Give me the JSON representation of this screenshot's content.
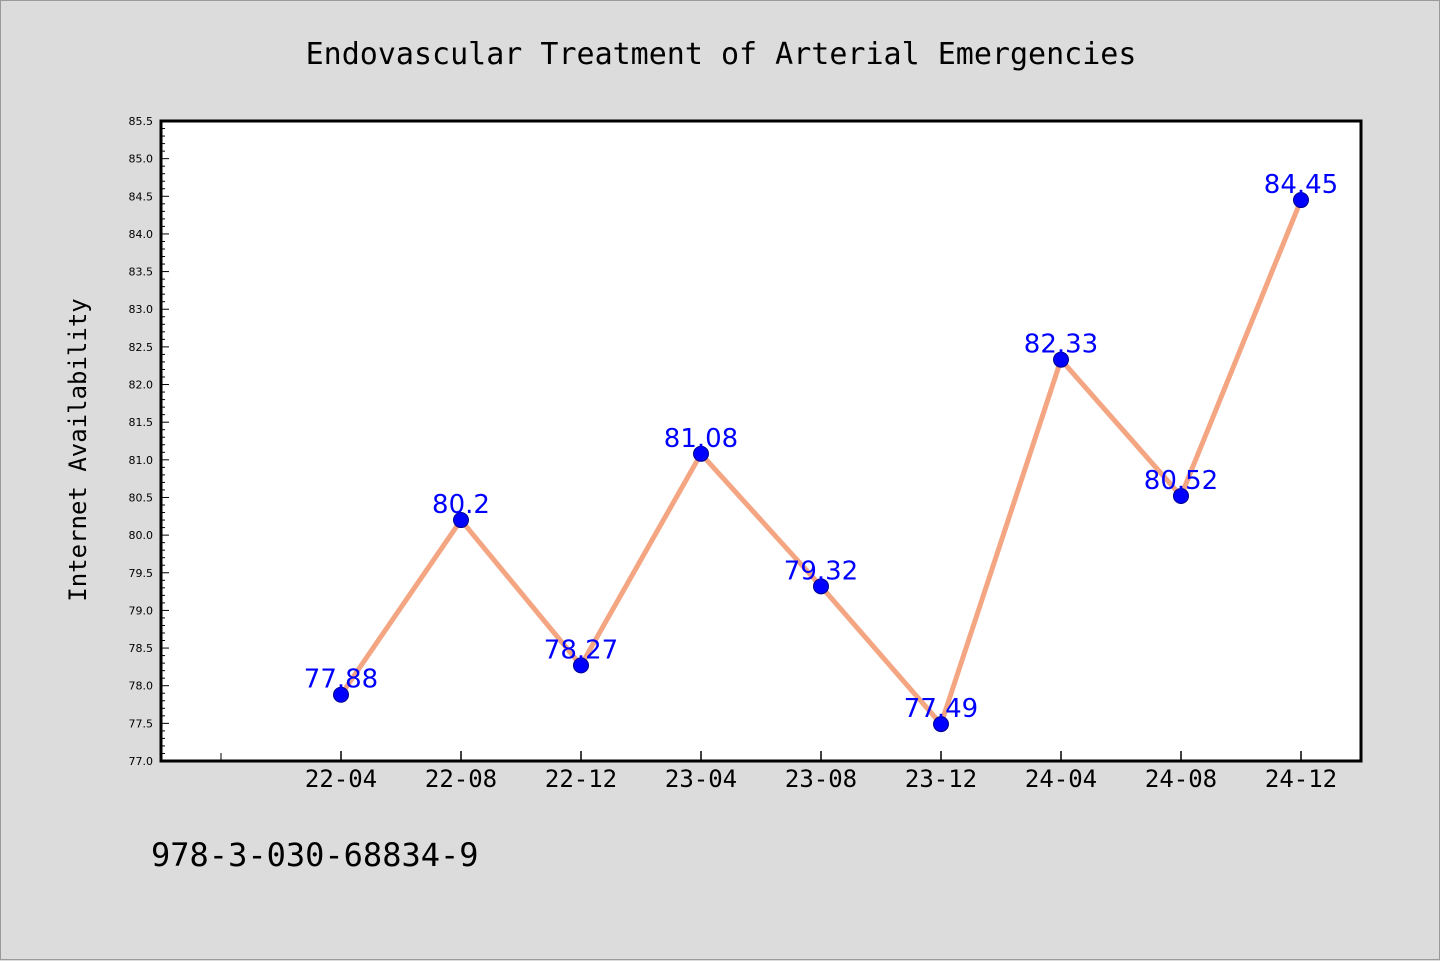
{
  "chart_data": {
    "type": "line",
    "title": "Endovascular Treatment of Arterial Emergencies",
    "xlabel": "",
    "ylabel": "Internet Availability",
    "categories": [
      "22-04",
      "22-08",
      "22-12",
      "23-04",
      "23-08",
      "23-12",
      "24-04",
      "24-08",
      "24-12"
    ],
    "values": [
      77.88,
      80.2,
      78.27,
      81.08,
      79.32,
      77.49,
      82.33,
      80.52,
      84.45
    ],
    "value_labels": [
      "77.88",
      "80.2",
      "78.27",
      "81.08",
      "79.32",
      "77.49",
      "82.33",
      "80.52",
      "84.45"
    ],
    "ylim": [
      77.0,
      85.5
    ],
    "yticks": [
      "77.0",
      "77.5",
      "78.0",
      "78.5",
      "79.0",
      "79.5",
      "80.0",
      "80.5",
      "81.0",
      "81.5",
      "82.0",
      "82.5",
      "83.0",
      "83.5",
      "84.0",
      "84.5",
      "85.0",
      "85.5"
    ],
    "grid": false,
    "legend": "none",
    "line_color": "#f4a582",
    "marker_color": "#0000ff",
    "label_color": "#0000ff"
  },
  "footer": "978-3-030-68834-9"
}
